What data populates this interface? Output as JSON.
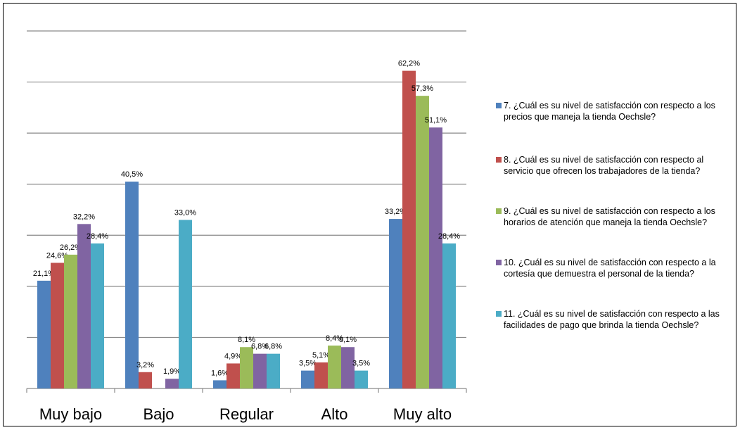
{
  "chart_data": {
    "type": "bar",
    "categories": [
      "Muy bajo",
      "Bajo",
      "Regular",
      "Alto",
      "Muy alto"
    ],
    "ylim": [
      0,
      70
    ],
    "grid": true,
    "legend_position": "right",
    "series": [
      {
        "name": "7.     ¿Cuál es su nivel de satisfacción con respecto a los precios que maneja la tienda Oechsle?",
        "color": "#4F81BD",
        "values": [
          21.1,
          40.5,
          1.6,
          3.5,
          33.2
        ],
        "labels": [
          "21,1%",
          "40,5%",
          "1,6%",
          "3,5%",
          "33,2%"
        ]
      },
      {
        "name": "8.     ¿Cuál es su nivel de satisfacción con respecto al servicio que ofrecen los trabajadores de la tienda?",
        "color": "#C0504D",
        "values": [
          24.6,
          3.2,
          4.9,
          5.1,
          62.2
        ],
        "labels": [
          "24,6%",
          "3,2%",
          "4,9%",
          "5,1%",
          "62,2%"
        ]
      },
      {
        "name": "9.     ¿Cuál es su nivel de satisfacción con respecto a los horarios de atención que maneja la tienda Oechsle?",
        "color": "#9BBB59",
        "values": [
          26.2,
          0,
          8.1,
          8.4,
          57.3
        ],
        "labels": [
          "26,2%",
          "",
          "8,1%",
          "8,4%",
          "57,3%"
        ]
      },
      {
        "name": "10.  ¿Cuál es su nivel de satisfacción con respecto a la cortesía que demuestra el personal de la tienda?",
        "color": "#8064A2",
        "values": [
          32.2,
          1.9,
          6.8,
          8.1,
          51.1
        ],
        "labels": [
          "32,2%",
          "1,9%",
          "6,8%",
          "8,1%",
          "51,1%"
        ]
      },
      {
        "name": "11.  ¿Cuál es su nivel de satisfacción con respecto a las facilidades de pago que brinda la tienda Oechsle?",
        "color": "#4BACC6",
        "values": [
          28.4,
          33.0,
          6.8,
          3.5,
          28.4
        ],
        "labels": [
          "28,4%",
          "33,0%",
          "6,8%",
          "3,5%",
          "28,4%"
        ]
      }
    ]
  }
}
